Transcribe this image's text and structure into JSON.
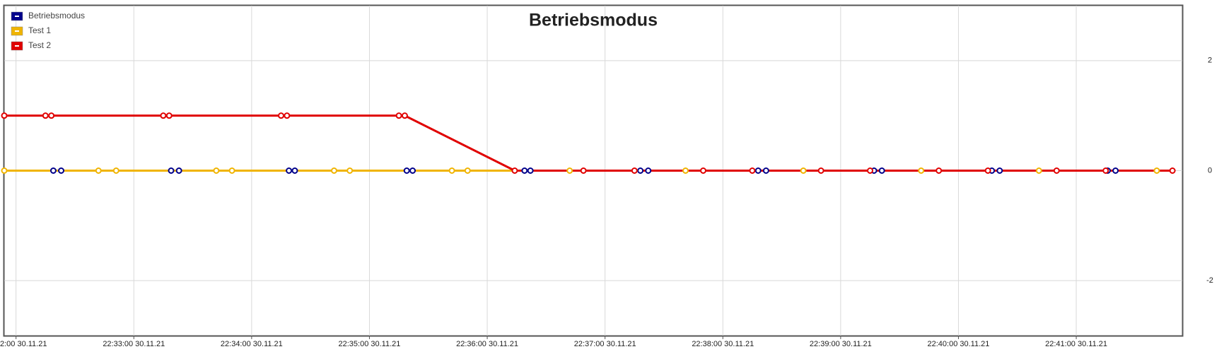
{
  "chart_data": {
    "type": "line",
    "title": "Betriebsmodus",
    "xlim": [
      "22:31:54",
      "22:41:54"
    ],
    "xticks": [
      {
        "value": "22:32:00",
        "label": "2:00 30.11.21"
      },
      {
        "value": "22:33:00",
        "label": "22:33:00 30.11.21"
      },
      {
        "value": "22:34:00",
        "label": "22:34:00 30.11.21"
      },
      {
        "value": "22:35:00",
        "label": "22:35:00 30.11.21"
      },
      {
        "value": "22:36:00",
        "label": "22:36:00 30.11.21"
      },
      {
        "value": "22:37:00",
        "label": "22:37:00 30.11.21"
      },
      {
        "value": "22:38:00",
        "label": "22:38:00 30.11.21"
      },
      {
        "value": "22:39:00",
        "label": "22:39:00 30.11.21"
      },
      {
        "value": "22:40:00",
        "label": "22:40:00 30.11.21"
      },
      {
        "value": "22:41:00",
        "label": "22:41:00 30.11.21"
      }
    ],
    "ylim": [
      -3,
      3
    ],
    "yticks": [
      -2,
      0,
      2
    ],
    "grid": true,
    "legend": "top-left",
    "series": [
      {
        "name": "Betriebsmodus",
        "color": "#00008b",
        "x": [
          "22:32:19",
          "22:32:23",
          "22:33:19",
          "22:33:23",
          "22:34:19",
          "22:34:22",
          "22:35:19",
          "22:35:22",
          "22:36:19",
          "22:36:22",
          "22:37:18",
          "22:37:22",
          "22:38:18",
          "22:38:22",
          "22:39:17",
          "22:39:21",
          "22:40:17",
          "22:40:21",
          "22:41:16",
          "22:41:20"
        ],
        "values": [
          0,
          0,
          0,
          0,
          0,
          0,
          0,
          0,
          0,
          0,
          0,
          0,
          0,
          0,
          0,
          0,
          0,
          0,
          0,
          0
        ]
      },
      {
        "name": "Test 1",
        "color": "#f0b400",
        "x": [
          "22:31:54",
          "22:32:42",
          "22:32:51",
          "22:33:42",
          "22:33:50",
          "22:34:42",
          "22:34:50",
          "22:35:42",
          "22:35:50",
          "22:36:42",
          "22:37:41",
          "22:38:41",
          "22:39:41",
          "22:40:41",
          "22:41:41"
        ],
        "values": [
          0,
          0,
          0,
          0,
          0,
          0,
          0,
          0,
          0,
          0,
          0,
          0,
          0,
          0,
          0
        ]
      },
      {
        "name": "Test 2",
        "color": "#e00000",
        "x": [
          "22:31:54",
          "22:32:15",
          "22:32:18",
          "22:33:15",
          "22:33:18",
          "22:34:15",
          "22:34:18",
          "22:35:15",
          "22:35:18",
          "22:36:14",
          "22:36:49",
          "22:37:15",
          "22:37:50",
          "22:38:15",
          "22:38:50",
          "22:39:15",
          "22:39:50",
          "22:40:15",
          "22:40:50",
          "22:41:15",
          "22:41:49"
        ],
        "values": [
          1,
          1,
          1,
          1,
          1,
          1,
          1,
          1,
          1,
          0,
          0,
          0,
          0,
          0,
          0,
          0,
          0,
          0,
          0,
          0,
          0
        ]
      }
    ]
  }
}
